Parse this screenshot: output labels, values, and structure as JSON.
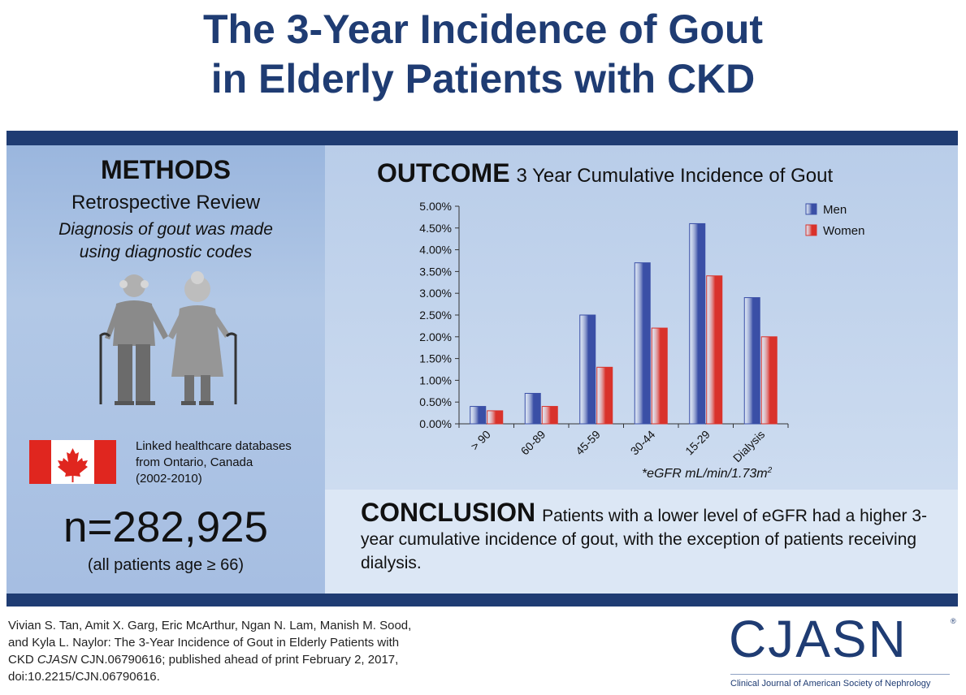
{
  "title": {
    "line1": "The 3-Year Incidence of Gout",
    "line2": "in Elderly Patients with CKD"
  },
  "methods": {
    "heading": "METHODS",
    "subheading": "Retrospective Review",
    "detail_line1": "Diagnosis of gout was made",
    "detail_line2": "using diagnostic codes",
    "illustration": "elderly-couple-with-canes-icon",
    "flag": "canada-flag-icon",
    "data_source_line1": "Linked healthcare databases",
    "data_source_line2": "from Ontario, Canada",
    "data_source_line3": "(2002-2010)",
    "count": "n=282,925",
    "count_note": "(all patients age ≥ 66)"
  },
  "outcome": {
    "heading": "OUTCOME",
    "subheading": "3 Year Cumulative Incidence of Gout",
    "footnote": "*eGFR mL/min/1.73m",
    "footnote_sup": "2"
  },
  "chart_data": {
    "type": "bar",
    "title": "3 Year Cumulative Incidence of Gout",
    "xlabel": "*eGFR mL/min/1.73m2",
    "ylabel": "",
    "categories": [
      "> 90",
      "60-89",
      "45-59",
      "30-44",
      "15-29",
      "Dialysis"
    ],
    "series": [
      {
        "name": "Men",
        "values": [
          0.4,
          0.7,
          2.5,
          3.7,
          4.6,
          2.9
        ],
        "color": "#3a4fa6"
      },
      {
        "name": "Women",
        "values": [
          0.3,
          0.4,
          1.3,
          2.2,
          3.4,
          2.0
        ],
        "color": "#d9322b"
      }
    ],
    "ylim": [
      0,
      5
    ],
    "yticks": [
      "0.00%",
      "0.50%",
      "1.00%",
      "1.50%",
      "2.00%",
      "2.50%",
      "3.00%",
      "3.50%",
      "4.00%",
      "4.50%",
      "5.00%"
    ],
    "grid": false,
    "legend": "top-right"
  },
  "conclusion": {
    "heading": "CONCLUSION",
    "text": "Patients with a lower level of eGFR had a higher 3-year cumulative incidence of gout, with the exception of patients receiving dialysis."
  },
  "citation": {
    "line1": "Vivian S. Tan, Amit X. Garg, Eric McArthur, Ngan N. Lam, Manish M. Sood,",
    "line2": "and Kyla L. Naylor: The 3-Year Incidence of Gout in Elderly Patients with",
    "line3_pre": "CKD ",
    "line3_journal": "CJASN",
    "line3_post": " CJN.06790616; published ahead of print February 2, 2017,",
    "line4": "doi:10.2215/CJN.06790616."
  },
  "logo": {
    "word": "CJASN",
    "registered": "®",
    "subtitle": "Clinical Journal of American Society of Nephrology"
  },
  "colors": {
    "navy": "#1f3c73",
    "men_bar": "#3a4fa6",
    "women_bar": "#d9322b"
  }
}
